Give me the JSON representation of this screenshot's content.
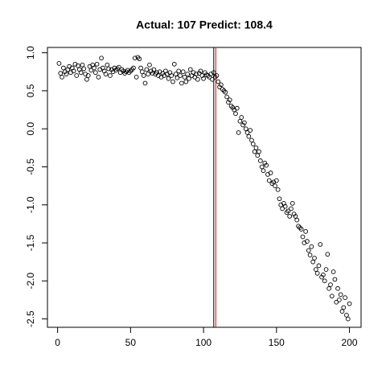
{
  "chart_data": {
    "type": "scatter",
    "title": "Actual: 107 Predict: 108.4",
    "x": [
      1,
      2,
      3,
      4,
      5,
      6,
      7,
      8,
      9,
      10,
      11,
      12,
      13,
      14,
      15,
      16,
      17,
      18,
      19,
      20,
      21,
      22,
      23,
      24,
      25,
      26,
      27,
      28,
      29,
      30,
      31,
      32,
      33,
      34,
      35,
      36,
      37,
      38,
      39,
      40,
      41,
      42,
      43,
      44,
      45,
      46,
      47,
      48,
      49,
      50,
      51,
      52,
      53,
      54,
      55,
      56,
      57,
      58,
      59,
      60,
      61,
      62,
      63,
      64,
      65,
      66,
      67,
      68,
      69,
      70,
      71,
      72,
      73,
      74,
      75,
      76,
      77,
      78,
      79,
      80,
      81,
      82,
      83,
      84,
      85,
      86,
      87,
      88,
      89,
      90,
      91,
      92,
      93,
      94,
      95,
      96,
      97,
      98,
      99,
      100,
      101,
      102,
      103,
      104,
      105,
      106,
      107,
      108,
      109,
      110,
      111,
      112,
      113,
      114,
      115,
      116,
      117,
      118,
      119,
      120,
      121,
      122,
      123,
      124,
      125,
      126,
      127,
      128,
      129,
      130,
      131,
      132,
      133,
      134,
      135,
      136,
      137,
      138,
      139,
      140,
      141,
      142,
      143,
      144,
      145,
      146,
      147,
      148,
      149,
      150,
      151,
      152,
      153,
      154,
      155,
      156,
      157,
      158,
      159,
      160,
      161,
      162,
      163,
      164,
      165,
      166,
      167,
      168,
      169,
      170,
      171,
      172,
      173,
      174,
      175,
      176,
      177,
      178,
      179,
      180,
      181,
      182,
      183,
      184,
      185,
      186,
      187,
      188,
      189,
      190,
      191,
      192,
      193,
      194,
      195,
      196,
      197,
      198,
      199,
      200
    ],
    "values": [
      0.86,
      0.73,
      0.68,
      0.8,
      0.75,
      0.72,
      0.78,
      0.82,
      0.74,
      0.8,
      0.76,
      0.85,
      0.7,
      0.83,
      0.78,
      0.74,
      0.84,
      0.79,
      0.72,
      0.65,
      0.7,
      0.82,
      0.77,
      0.84,
      0.8,
      0.74,
      0.85,
      0.68,
      0.78,
      0.93,
      0.8,
      0.76,
      0.72,
      0.84,
      0.79,
      0.7,
      0.78,
      0.75,
      0.8,
      0.77,
      0.79,
      0.81,
      0.74,
      0.78,
      0.76,
      0.73,
      0.75,
      0.77,
      0.74,
      0.76,
      0.78,
      0.8,
      0.93,
      0.68,
      0.94,
      0.92,
      0.8,
      0.75,
      0.7,
      0.6,
      0.78,
      0.72,
      0.84,
      0.76,
      0.73,
      0.78,
      0.72,
      0.74,
      0.7,
      0.75,
      0.68,
      0.73,
      0.7,
      0.76,
      0.72,
      0.66,
      0.74,
      0.7,
      0.62,
      0.85,
      0.72,
      0.67,
      0.76,
      0.7,
      0.6,
      0.75,
      0.68,
      0.62,
      0.72,
      0.66,
      0.78,
      0.7,
      0.74,
      0.68,
      0.72,
      0.65,
      0.73,
      0.76,
      0.7,
      0.66,
      0.74,
      0.71,
      0.7,
      0.68,
      0.72,
      0.65,
      0.74,
      0.68,
      0.7,
      0.62,
      0.55,
      0.58,
      0.52,
      0.5,
      0.48,
      0.42,
      0.35,
      0.38,
      0.3,
      0.28,
      0.25,
      0.2,
      0.27,
      -0.05,
      0.1,
      0.15,
      0.05,
      0.08,
      0.0,
      -0.05,
      -0.1,
      -0.02,
      -0.15,
      -0.2,
      -0.3,
      -0.25,
      -0.35,
      -0.3,
      -0.42,
      -0.5,
      -0.55,
      -0.45,
      -0.48,
      -0.6,
      -0.68,
      -0.58,
      -0.72,
      -0.7,
      -0.75,
      -0.68,
      -0.8,
      -0.92,
      -1.0,
      -1.05,
      -0.98,
      -1.02,
      -1.1,
      -1.08,
      -1.15,
      -1.05,
      -0.98,
      -1.12,
      -1.15,
      -1.2,
      -1.28,
      -1.3,
      -1.32,
      -1.42,
      -1.5,
      -1.35,
      -1.48,
      -1.6,
      -1.66,
      -1.55,
      -1.75,
      -1.7,
      -1.85,
      -1.9,
      -1.8,
      -1.52,
      -1.95,
      -1.92,
      -2.0,
      -1.85,
      -1.65,
      -2.1,
      -2.05,
      -2.2,
      -1.88,
      -1.98,
      -2.28,
      -2.1,
      -2.25,
      -2.18,
      -2.4,
      -2.35,
      -2.22,
      -2.45,
      -2.5,
      -2.3
    ],
    "color": "#000000",
    "xlim": [
      -6.96,
      207.96
    ],
    "xticks": [
      0,
      50,
      100,
      150,
      200
    ],
    "ylim": [
      -2.61,
      1.07
    ],
    "yticks": [
      {
        "value": 1,
        "label": "1.0"
      },
      0.5,
      {
        "value": 0,
        "label": "0.0"
      },
      -0.5,
      {
        "value": -1,
        "label": "-1.0"
      },
      -1.5,
      {
        "value": -2,
        "label": "-2.0"
      },
      -2.5
    ],
    "vlines": [
      {
        "value": 107,
        "color": "#000000"
      },
      {
        "value": 108.4,
        "color": "#ff0000"
      }
    ]
  }
}
